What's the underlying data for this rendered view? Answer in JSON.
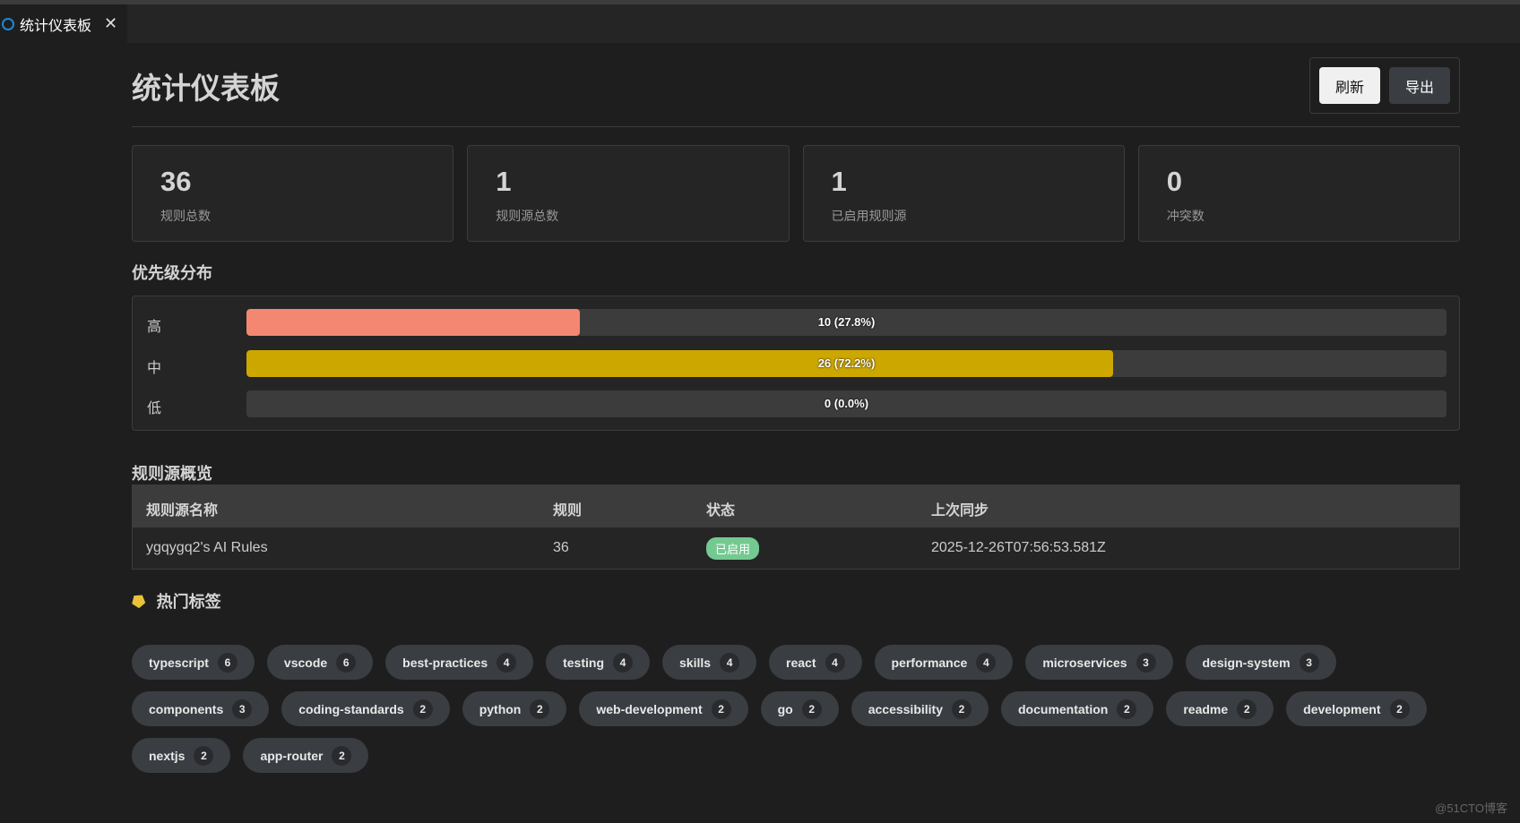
{
  "tab": {
    "title": "统计仪表板",
    "icon": "rules-icon"
  },
  "header": {
    "title": "统计仪表板",
    "refresh_label": "刷新",
    "export_label": "导出"
  },
  "stats": [
    {
      "value": "36",
      "label": "规则总数"
    },
    {
      "value": "1",
      "label": "规则源总数"
    },
    {
      "value": "1",
      "label": "已启用规则源"
    },
    {
      "value": "0",
      "label": "冲突数"
    }
  ],
  "priority": {
    "title": "优先级分布",
    "rows": [
      {
        "label": "高",
        "count": 10,
        "percent": 27.8,
        "text": "10 (27.8%)",
        "color": "#f48771"
      },
      {
        "label": "中",
        "count": 26,
        "percent": 72.2,
        "text": "26 (72.2%)",
        "color": "#cca700"
      },
      {
        "label": "低",
        "count": 0,
        "percent": 0.0,
        "text": "0 (0.0%)",
        "color": "#3794ff"
      }
    ]
  },
  "sources": {
    "title": "规则源概览",
    "columns": [
      "规则源名称",
      "规则",
      "状态",
      "上次同步"
    ],
    "rows": [
      {
        "name": "ygqygq2's AI Rules",
        "rules": "36",
        "status": "已启用",
        "last_sync": "2025-12-26T07:56:53.581Z"
      }
    ]
  },
  "tags": {
    "title": "热门标签",
    "icon": "tag-icon",
    "items": [
      {
        "name": "typescript",
        "count": "6"
      },
      {
        "name": "vscode",
        "count": "6"
      },
      {
        "name": "best-practices",
        "count": "4"
      },
      {
        "name": "testing",
        "count": "4"
      },
      {
        "name": "skills",
        "count": "4"
      },
      {
        "name": "react",
        "count": "4"
      },
      {
        "name": "performance",
        "count": "4"
      },
      {
        "name": "microservices",
        "count": "3"
      },
      {
        "name": "design-system",
        "count": "3"
      },
      {
        "name": "components",
        "count": "3"
      },
      {
        "name": "coding-standards",
        "count": "2"
      },
      {
        "name": "python",
        "count": "2"
      },
      {
        "name": "web-development",
        "count": "2"
      },
      {
        "name": "go",
        "count": "2"
      },
      {
        "name": "accessibility",
        "count": "2"
      },
      {
        "name": "documentation",
        "count": "2"
      },
      {
        "name": "readme",
        "count": "2"
      },
      {
        "name": "development",
        "count": "2"
      },
      {
        "name": "nextjs",
        "count": "2"
      },
      {
        "name": "app-router",
        "count": "2"
      }
    ]
  },
  "watermark": "@51CTO博客"
}
